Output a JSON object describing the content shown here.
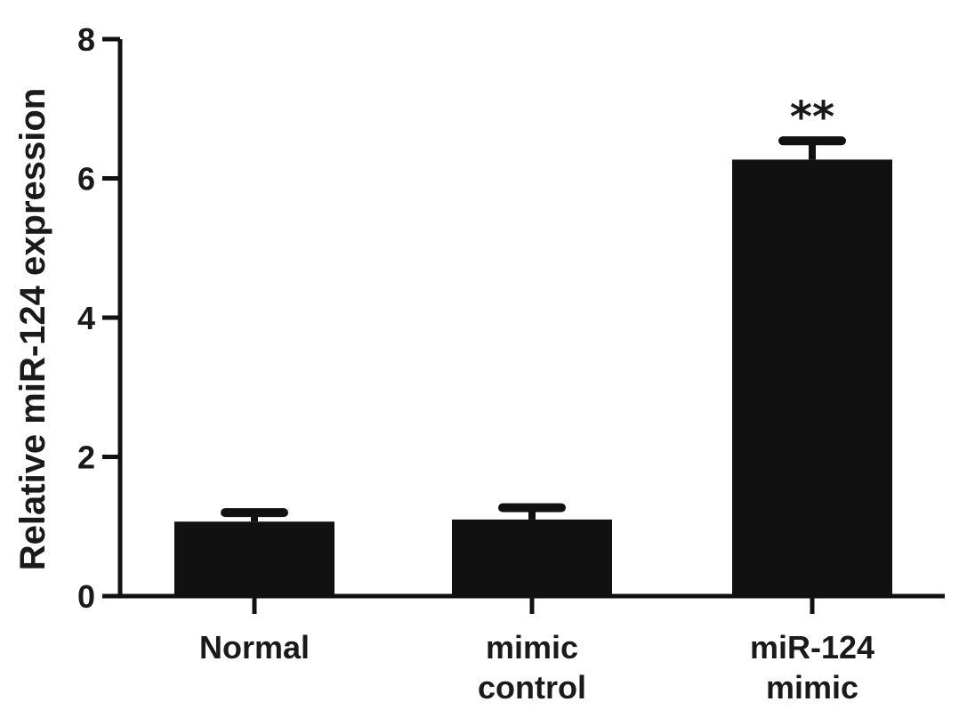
{
  "chart_data": {
    "type": "bar",
    "title": "",
    "xlabel": "",
    "ylabel": "Relative miR-124 expression",
    "ylim": [
      0,
      8
    ],
    "yticks": [
      "0",
      "2",
      "4",
      "6",
      "8"
    ],
    "categories": [
      [
        "Normal"
      ],
      [
        "mimic",
        "control"
      ],
      [
        "miR-124",
        "mimic"
      ]
    ],
    "values": [
      1.07,
      1.1,
      6.27
    ],
    "errors": [
      0.13,
      0.17,
      0.27
    ],
    "annotations": [
      "",
      "",
      "**"
    ],
    "grid": false,
    "bar_color": "#111111"
  }
}
